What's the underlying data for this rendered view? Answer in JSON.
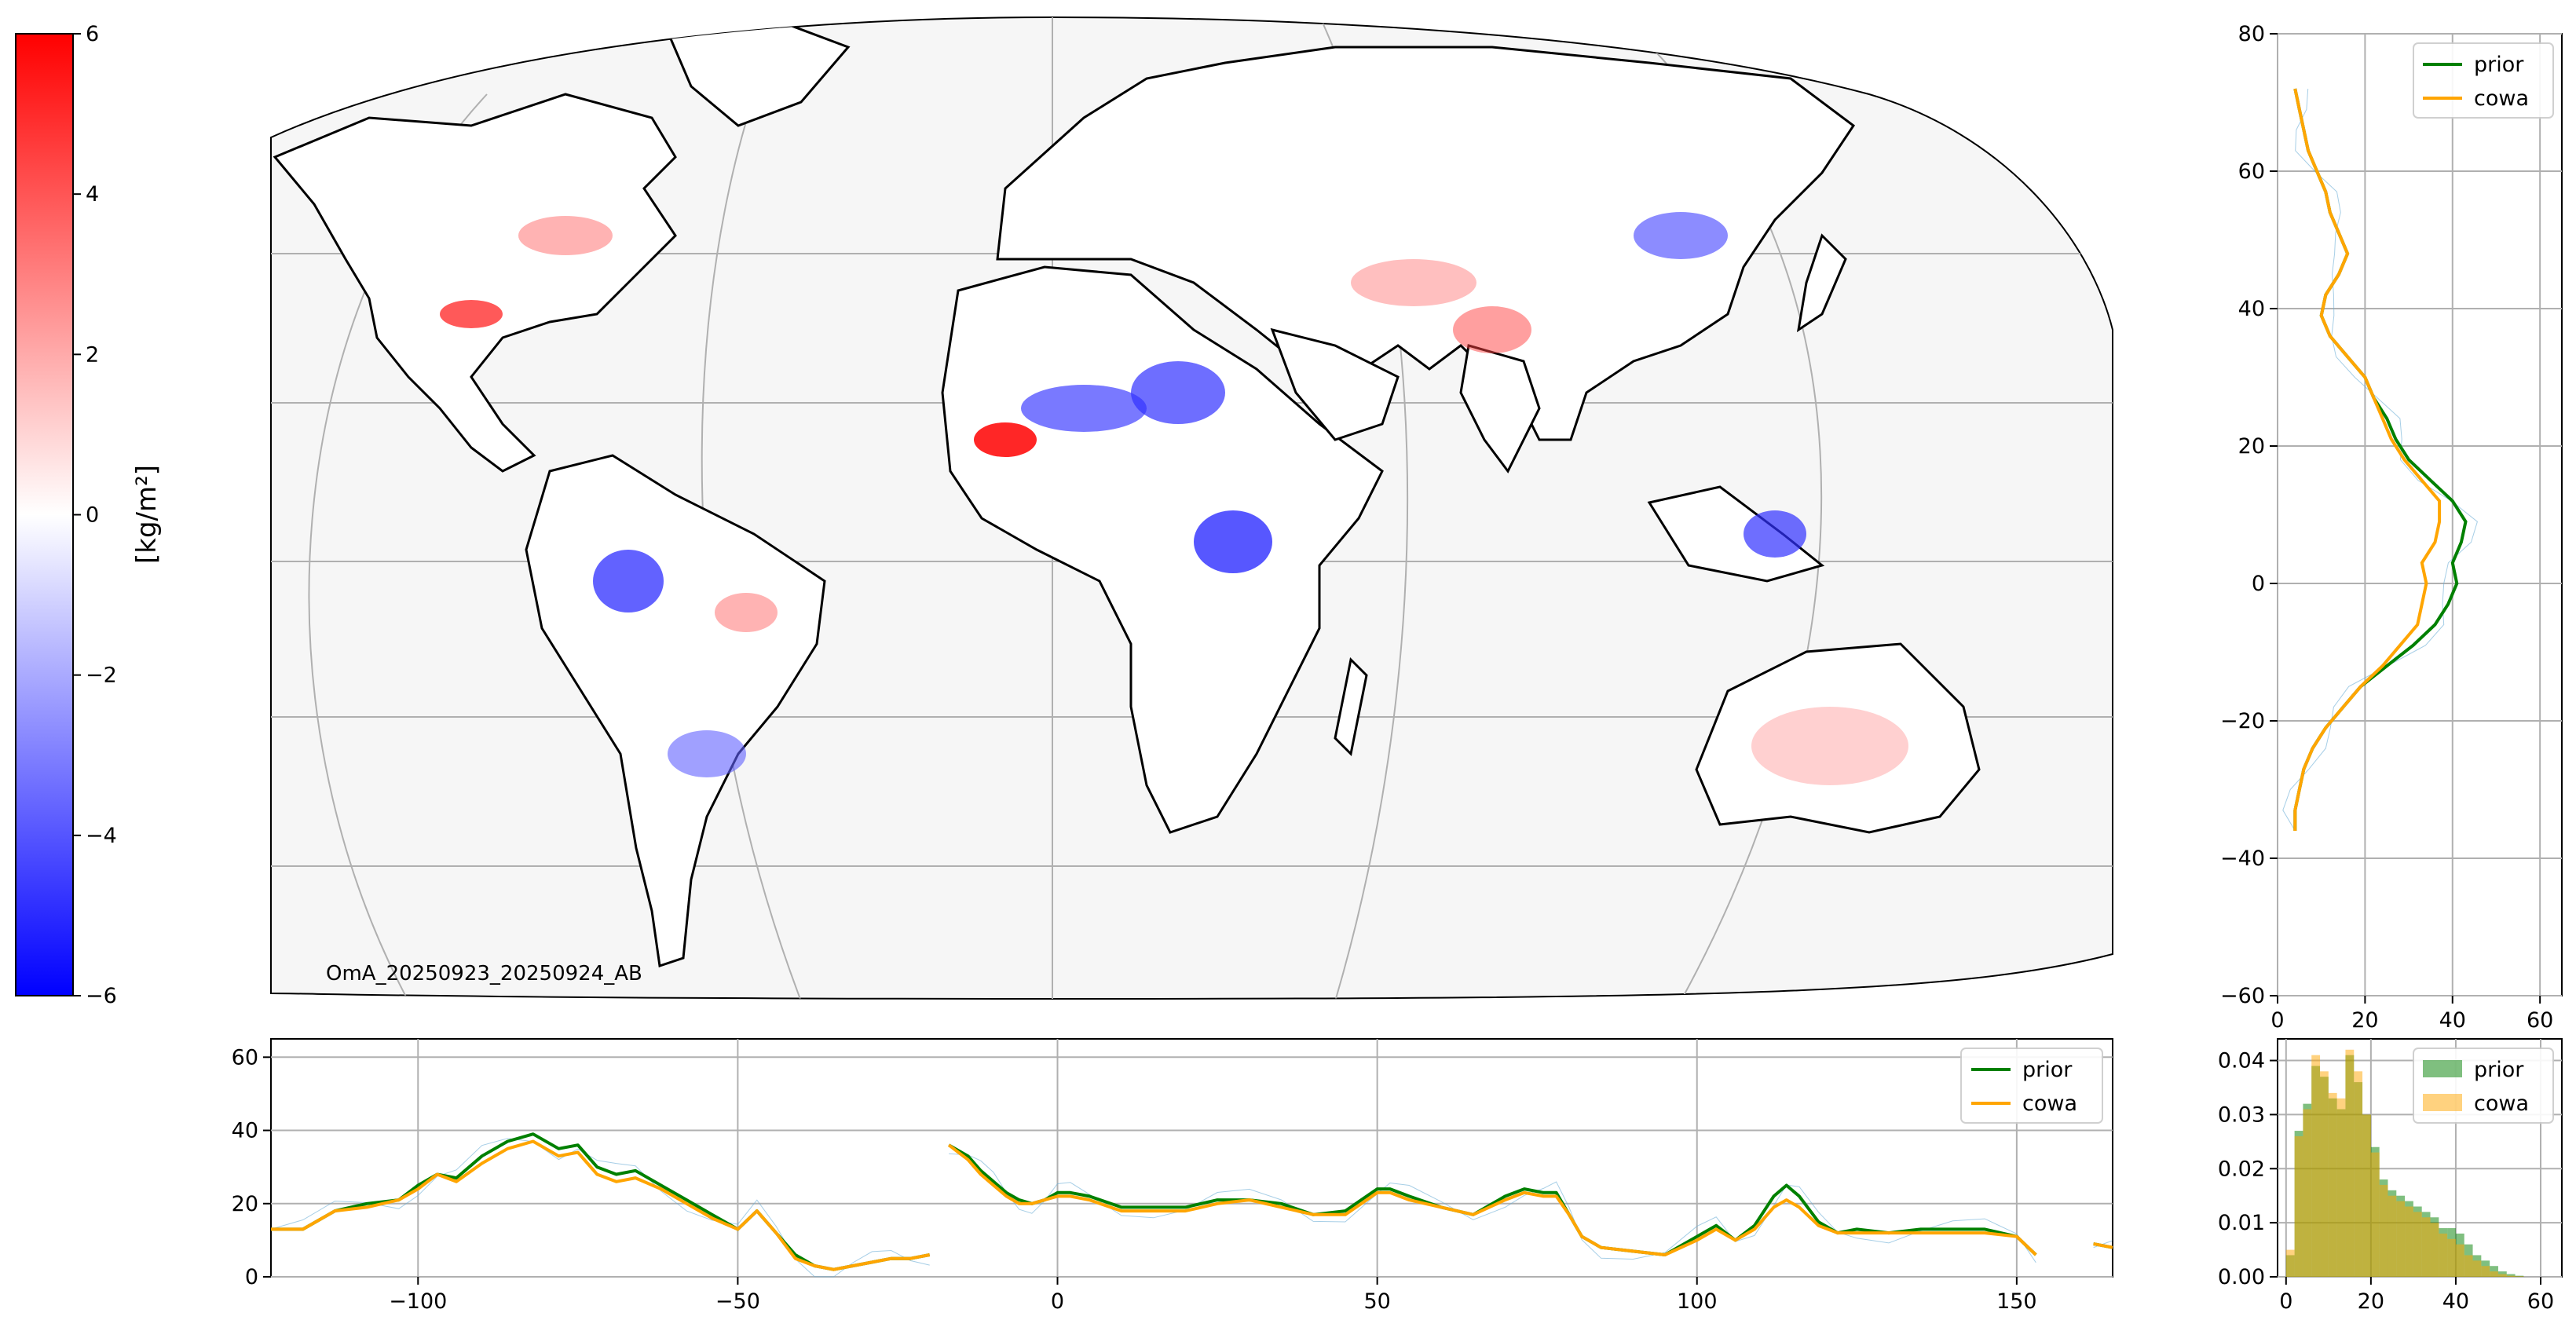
{
  "colors": {
    "prior": "#008000",
    "cowa": "#ffa500",
    "obs": "#6aaed6",
    "grid": "#b0b0b0",
    "land_bg": "#f6f6f6"
  },
  "colorbar": {
    "label": "[kg/m²]",
    "range": [
      -6,
      6
    ],
    "ticks": [
      {
        "v": 6,
        "t": "6"
      },
      {
        "v": 4,
        "t": "4"
      },
      {
        "v": 2,
        "t": "2"
      },
      {
        "v": 0,
        "t": "0"
      },
      {
        "v": -2,
        "t": "−2"
      },
      {
        "v": -4,
        "t": "−4"
      },
      {
        "v": -6,
        "t": "−6"
      }
    ],
    "colormap": "bwr"
  },
  "map": {
    "annotation": "OmA_20250923_20250924_AB",
    "projection": "Robinson-like",
    "lon_range": [
      -120,
      165
    ],
    "lat_range": [
      -58,
      82
    ]
  },
  "chart_data": [
    {
      "type": "line",
      "panel": "zonal_profile_vs_longitude",
      "xlim": [
        -123,
        165
      ],
      "ylim": [
        0,
        65
      ],
      "xticks": [
        {
          "v": -100,
          "t": "−100"
        },
        {
          "v": -50,
          "t": "−50"
        },
        {
          "v": 0,
          "t": "0"
        },
        {
          "v": 50,
          "t": "50"
        },
        {
          "v": 100,
          "t": "100"
        },
        {
          "v": 150,
          "t": "150"
        }
      ],
      "yticks": [
        {
          "v": 0,
          "t": "0"
        },
        {
          "v": 20,
          "t": "20"
        },
        {
          "v": 40,
          "t": "40"
        },
        {
          "v": 60,
          "t": "60"
        }
      ],
      "legend": "top-right",
      "grid": true,
      "series": [
        {
          "name": "prior",
          "x": [
            -123,
            -118,
            -113,
            -108,
            -103,
            -100,
            -97,
            -94,
            -90,
            -86,
            -82,
            -78,
            -75,
            -72,
            -69,
            -66,
            -62,
            -58,
            -54,
            -50,
            -47,
            -44,
            -41,
            -38,
            -35,
            -32,
            -29,
            -26,
            -23,
            -20,
            -17,
            -14,
            -12,
            -10,
            -8,
            -6,
            -4,
            -2,
            0,
            2,
            5,
            10,
            15,
            20,
            25,
            30,
            35,
            40,
            45,
            50,
            52,
            55,
            60,
            65,
            70,
            73,
            76,
            78,
            80,
            82,
            85,
            90,
            95,
            100,
            103,
            106,
            109,
            112,
            114,
            116,
            119,
            122,
            125,
            130,
            135,
            140,
            145,
            150,
            153,
            157,
            162,
            165
          ],
          "y": [
            null,
            null,
            null,
            null,
            null,
            null,
            null,
            null,
            null,
            null,
            null,
            null,
            null,
            null,
            null,
            null,
            null,
            null,
            null,
            null,
            null,
            null,
            null,
            null,
            null,
            null,
            null,
            null,
            null,
            null,
            36,
            33,
            29,
            26,
            23,
            21,
            20,
            21,
            23,
            23,
            22,
            19,
            19,
            19,
            21,
            21,
            20,
            17,
            18,
            24,
            24,
            22,
            19,
            17,
            22,
            24,
            23,
            23,
            17,
            11,
            8,
            7,
            6,
            11,
            14,
            10,
            14,
            22,
            25,
            22,
            15,
            12,
            13,
            12,
            13,
            13,
            13,
            11,
            6,
            null,
            9,
            8
          ]
        },
        {
          "name": "cowa",
          "x": [
            -123,
            -118,
            -113,
            -108,
            -103,
            -100,
            -97,
            -94,
            -90,
            -86,
            -82,
            -78,
            -75,
            -72,
            -69,
            -66,
            -62,
            -58,
            -54,
            -50,
            -47,
            -44,
            -41,
            -38,
            -35,
            -32,
            -29,
            -26,
            -23,
            -20,
            -17,
            -14,
            -12,
            -10,
            -8,
            -6,
            -4,
            -2,
            0,
            2,
            5,
            10,
            15,
            20,
            25,
            30,
            35,
            40,
            45,
            50,
            52,
            55,
            60,
            65,
            70,
            73,
            76,
            78,
            80,
            82,
            85,
            90,
            95,
            100,
            103,
            106,
            109,
            112,
            114,
            116,
            119,
            122,
            125,
            130,
            135,
            140,
            145,
            150,
            153,
            157,
            162,
            165
          ],
          "y": [
            null,
            null,
            null,
            null,
            null,
            null,
            null,
            null,
            null,
            null,
            null,
            null,
            null,
            null,
            null,
            null,
            null,
            null,
            null,
            null,
            null,
            null,
            null,
            null,
            null,
            null,
            null,
            null,
            null,
            null,
            36,
            32,
            28,
            25,
            22,
            20,
            20,
            21,
            22,
            22,
            21,
            18,
            18,
            18,
            20,
            21,
            19,
            17,
            17,
            23,
            23,
            21,
            19,
            17,
            21,
            23,
            22,
            22,
            17,
            11,
            8,
            7,
            6,
            10,
            13,
            10,
            13,
            19,
            21,
            19,
            14,
            12,
            12,
            12,
            12,
            12,
            12,
            11,
            6,
            null,
            9,
            8
          ]
        },
        {
          "name": "prior_west",
          "x": [
            -123,
            -118,
            -113,
            -108,
            -103,
            -100,
            -97,
            -94,
            -90,
            -86,
            -82,
            -78,
            -75,
            -72,
            -69,
            -66,
            -62,
            -58,
            -54,
            -50,
            -47,
            -44,
            -41,
            -38,
            -35,
            -32,
            -29,
            -26,
            -23,
            -20
          ],
          "y": [
            13,
            13,
            18,
            20,
            21,
            25,
            28,
            27,
            33,
            37,
            39,
            35,
            36,
            30,
            28,
            29,
            25,
            21,
            17,
            13,
            18,
            12,
            6,
            3,
            2,
            3,
            4,
            5,
            5,
            6
          ]
        },
        {
          "name": "cowa_west",
          "x": [
            -123,
            -118,
            -113,
            -108,
            -103,
            -100,
            -97,
            -94,
            -90,
            -86,
            -82,
            -78,
            -75,
            -72,
            -69,
            -66,
            -62,
            -58,
            -54,
            -50,
            -47,
            -44,
            -41,
            -38,
            -35,
            -32,
            -29,
            -26,
            -23,
            -20
          ],
          "y": [
            13,
            13,
            18,
            19,
            21,
            24,
            28,
            26,
            31,
            35,
            37,
            33,
            34,
            28,
            26,
            27,
            24,
            20,
            16,
            13,
            18,
            12,
            5,
            3,
            2,
            3,
            4,
            5,
            5,
            6
          ]
        }
      ]
    },
    {
      "type": "line",
      "panel": "meridional_profile_vs_latitude",
      "xlim": [
        0,
        65
      ],
      "ylim": [
        -60,
        80
      ],
      "xticks": [
        {
          "v": 0,
          "t": "0"
        },
        {
          "v": 20,
          "t": "20"
        },
        {
          "v": 40,
          "t": "40"
        },
        {
          "v": 60,
          "t": "60"
        }
      ],
      "yticks": [
        {
          "v": -60,
          "t": "−60"
        },
        {
          "v": -40,
          "t": "−40"
        },
        {
          "v": -20,
          "t": "−20"
        },
        {
          "v": 0,
          "t": "0"
        },
        {
          "v": 20,
          "t": "20"
        },
        {
          "v": 40,
          "t": "40"
        },
        {
          "v": 60,
          "t": "60"
        },
        {
          "v": 80,
          "t": "80"
        }
      ],
      "legend": "top-right",
      "grid": true,
      "series": [
        {
          "name": "prior",
          "lat": [
            -36,
            -33,
            -30,
            -27,
            -24,
            -21,
            -18,
            -15,
            -12,
            -9,
            -6,
            -3,
            0,
            3,
            6,
            9,
            12,
            15,
            18,
            21,
            24,
            27,
            30,
            33,
            36,
            39,
            42,
            45,
            48,
            51,
            54,
            57,
            60,
            63,
            66,
            69,
            72
          ],
          "x": [
            4,
            4,
            5,
            6,
            8,
            11,
            15,
            19,
            25,
            31,
            36,
            39,
            41,
            40,
            42,
            43,
            40,
            35,
            30,
            27,
            25,
            22,
            20,
            16,
            12,
            10,
            11,
            14,
            16,
            14,
            12,
            11,
            9,
            7,
            6,
            5,
            4
          ]
        },
        {
          "name": "cowa",
          "lat": [
            -36,
            -33,
            -30,
            -27,
            -24,
            -21,
            -18,
            -15,
            -12,
            -9,
            -6,
            -3,
            0,
            3,
            6,
            9,
            12,
            15,
            18,
            21,
            24,
            27,
            30,
            33,
            36,
            39,
            42,
            45,
            48,
            51,
            54,
            57,
            60,
            63,
            66,
            69,
            72
          ],
          "x": [
            4,
            4,
            5,
            6,
            8,
            11,
            15,
            19,
            24,
            28,
            32,
            33,
            34,
            33,
            36,
            37,
            37,
            33,
            29,
            26,
            24,
            22,
            20,
            16,
            12,
            10,
            11,
            14,
            16,
            14,
            12,
            11,
            9,
            7,
            6,
            5,
            4
          ]
        }
      ]
    },
    {
      "type": "histogram",
      "panel": "value_distribution",
      "xlim": [
        -2,
        65
      ],
      "ylim": [
        0,
        0.044
      ],
      "xticks": [
        {
          "v": 0,
          "t": "0"
        },
        {
          "v": 20,
          "t": "20"
        },
        {
          "v": 40,
          "t": "40"
        },
        {
          "v": 60,
          "t": "60"
        }
      ],
      "yticks": [
        {
          "v": 0,
          "t": "0.00"
        },
        {
          "v": 0.01,
          "t": "0.01"
        },
        {
          "v": 0.02,
          "t": "0.02"
        },
        {
          "v": 0.03,
          "t": "0.03"
        },
        {
          "v": 0.04,
          "t": "0.04"
        }
      ],
      "legend": "top-right",
      "bin_width": 2,
      "bin_start": 0,
      "series": [
        {
          "name": "prior",
          "values": [
            0.004,
            0.027,
            0.032,
            0.039,
            0.037,
            0.033,
            0.031,
            0.041,
            0.036,
            0.03,
            0.024,
            0.018,
            0.016,
            0.015,
            0.014,
            0.013,
            0.012,
            0.011,
            0.009,
            0.009,
            0.008,
            0.006,
            0.004,
            0.003,
            0.002,
            0.001,
            0.0005,
            0.0002
          ]
        },
        {
          "name": "cowa",
          "values": [
            0.005,
            0.026,
            0.031,
            0.041,
            0.038,
            0.034,
            0.033,
            0.042,
            0.038,
            0.03,
            0.023,
            0.017,
            0.015,
            0.014,
            0.013,
            0.012,
            0.011,
            0.01,
            0.008,
            0.007,
            0.006,
            0.004,
            0.003,
            0.002,
            0.001,
            0.0005,
            0.0002,
            0.0001
          ]
        }
      ]
    }
  ],
  "legend_labels": {
    "prior": "prior",
    "cowa": "cowa"
  }
}
